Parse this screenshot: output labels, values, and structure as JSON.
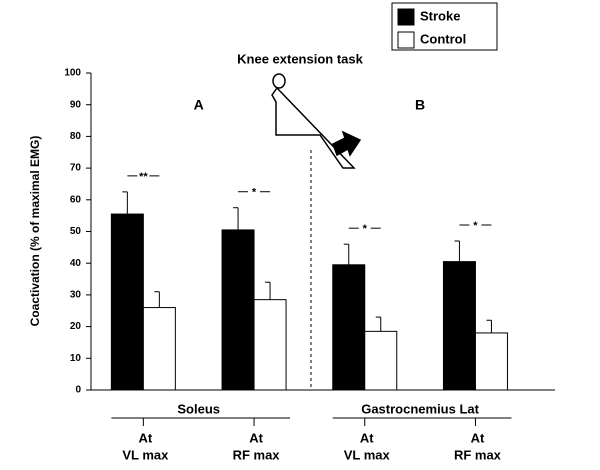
{
  "chart_data": {
    "type": "bar",
    "title": "Knee extension task",
    "ylabel": "Coactivation (% of maximal EMG)",
    "categories": [
      [
        "At",
        "VL max"
      ],
      [
        "At",
        "RF max"
      ],
      [
        "At",
        "VL max"
      ],
      [
        "At",
        "RF max"
      ]
    ],
    "groups": [
      {
        "label": "Soleus",
        "span": [
          0,
          1
        ]
      },
      {
        "label": "Gastrocnemius Lat",
        "span": [
          2,
          3
        ]
      }
    ],
    "panels": [
      "A",
      "B"
    ],
    "significance": [
      "**",
      "*",
      "*",
      "*"
    ],
    "series": [
      {
        "name": "Stroke",
        "color": "#000000",
        "values": [
          55.5,
          50.5,
          39.5,
          40.5
        ],
        "errors": [
          7,
          7,
          6.5,
          6.5
        ]
      },
      {
        "name": "Control",
        "color": "#ffffff",
        "values": [
          26,
          28.5,
          18.5,
          18
        ],
        "errors": [
          5,
          5.5,
          4.5,
          4
        ]
      }
    ],
    "ylim": [
      0,
      100
    ],
    "yticks": [
      0,
      10,
      20,
      30,
      40,
      50,
      60,
      70,
      80,
      90,
      100
    ],
    "grid": false,
    "legend": "top-right"
  }
}
